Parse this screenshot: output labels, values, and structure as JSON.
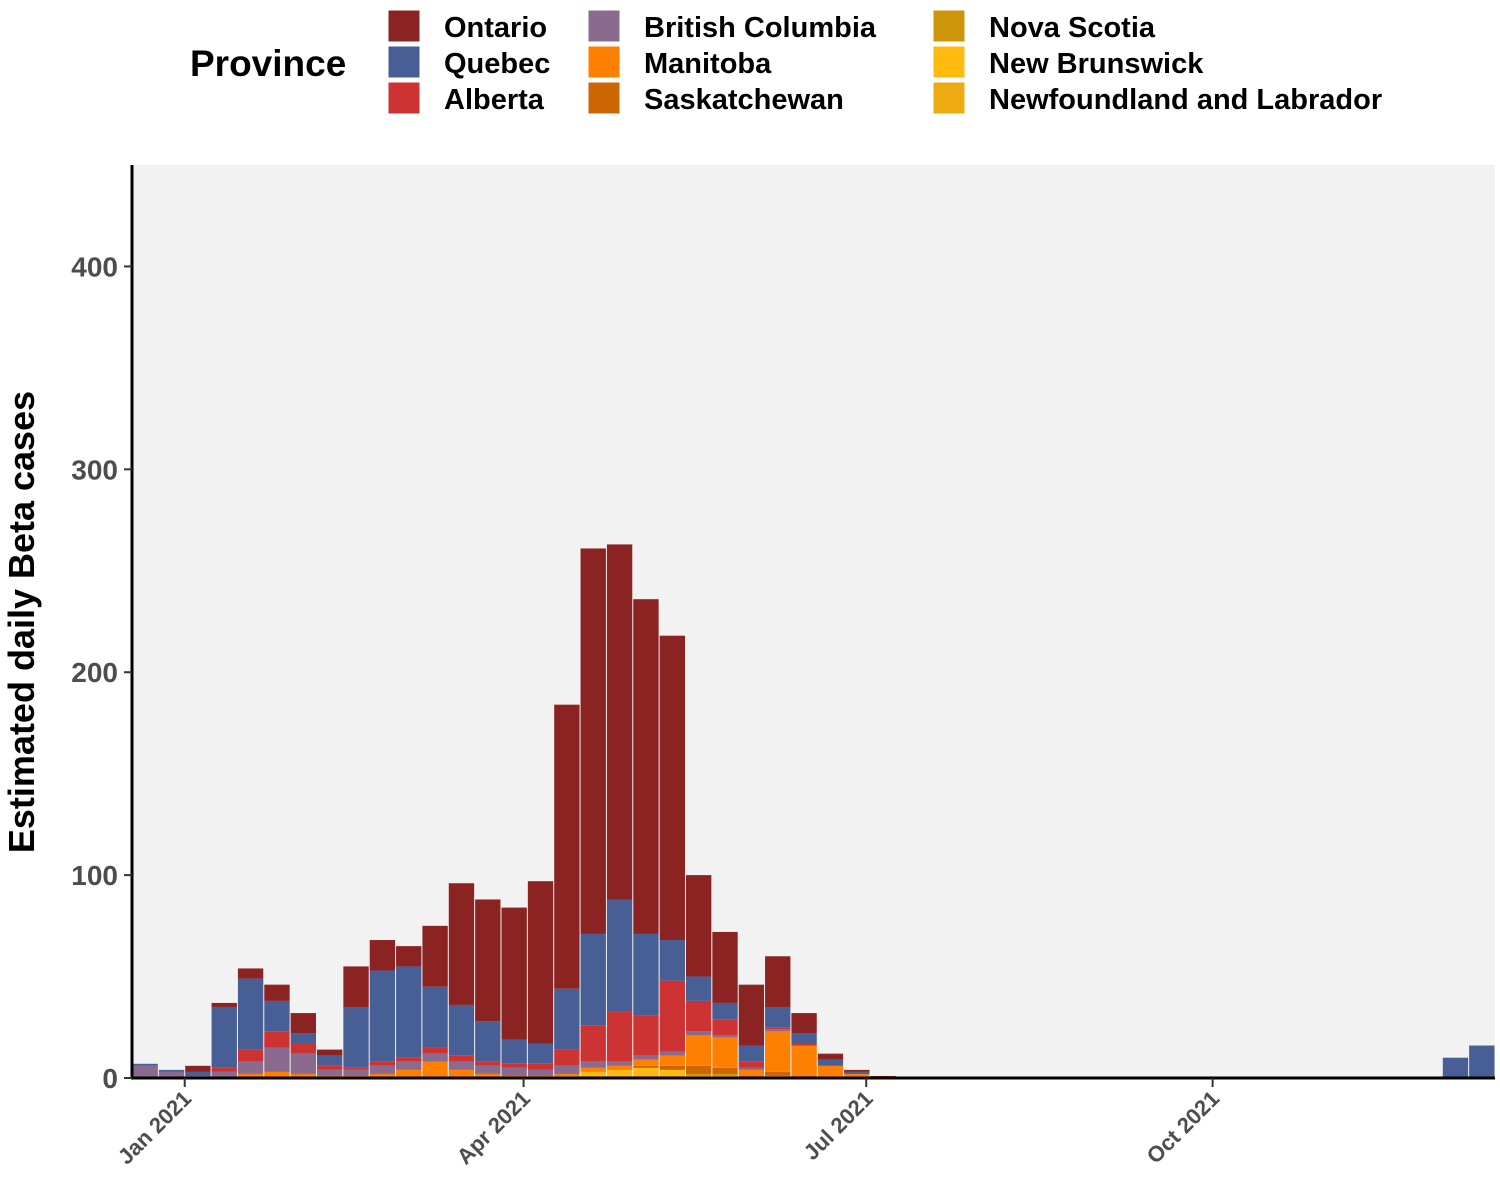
{
  "chart_data": {
    "type": "bar",
    "stacked": true,
    "title": "",
    "xlabel": "",
    "ylabel": "Estimated daily Beta cases",
    "ylim": [
      0,
      450
    ],
    "yticks": [
      "0",
      "100",
      "200",
      "300",
      "400"
    ],
    "xticks": [
      {
        "date": "2021-01-01",
        "label": "Jan 2021"
      },
      {
        "date": "2021-04-01",
        "label": "Apr 2021"
      },
      {
        "date": "2021-07-01",
        "label": "Jul 2021"
      },
      {
        "date": "2021-10-01",
        "label": "Oct 2021"
      }
    ],
    "x_range": [
      "2020-12-18",
      "2021-12-15"
    ],
    "grid": false,
    "legend": {
      "title": "Province",
      "placement": "top",
      "entries": [
        {
          "name": "Ontario",
          "color": "#8b2323"
        },
        {
          "name": "Quebec",
          "color": "#475f94"
        },
        {
          "name": "Alberta",
          "color": "#cd3333"
        },
        {
          "name": "British Columbia",
          "color": "#8b6a8f"
        },
        {
          "name": "Manitoba",
          "color": "#ff7f00"
        },
        {
          "name": "Saskatchewan",
          "color": "#cd6600"
        },
        {
          "name": "Nova Scotia",
          "color": "#cd950c"
        },
        {
          "name": "New Brunswick",
          "color": "#ffb90f"
        },
        {
          "name": "Newfoundland and Labrador",
          "color": "#eeaa11"
        }
      ]
    },
    "series_bins": {
      "bin_days": 7,
      "note_start": "2020-12-18",
      "week_starts": [
        "2020-12-18",
        "2020-12-25",
        "2021-01-01",
        "2021-01-08",
        "2021-01-15",
        "2021-01-22",
        "2021-01-29",
        "2021-02-05",
        "2021-02-12",
        "2021-02-19",
        "2021-02-26",
        "2021-03-05",
        "2021-03-12",
        "2021-03-19",
        "2021-03-26",
        "2021-04-02",
        "2021-04-09",
        "2021-04-16",
        "2021-04-23",
        "2021-04-30",
        "2021-05-07",
        "2021-05-14",
        "2021-05-21",
        "2021-05-28",
        "2021-06-04",
        "2021-06-11",
        "2021-06-18",
        "2021-06-25",
        "2021-07-02",
        "2021-07-09"
      ]
    },
    "series": [
      {
        "name": "Ontario",
        "values": [
          0,
          0,
          3,
          2,
          5,
          8,
          10,
          3,
          20,
          15,
          10,
          30,
          60,
          60,
          65,
          80,
          140,
          190,
          175,
          165,
          150,
          50,
          35,
          30,
          25,
          10,
          3,
          1,
          1,
          0
        ]
      },
      {
        "name": "Quebec",
        "values": [
          1,
          1,
          2,
          30,
          35,
          15,
          5,
          5,
          30,
          45,
          45,
          30,
          25,
          20,
          12,
          10,
          30,
          45,
          55,
          40,
          20,
          12,
          8,
          8,
          10,
          5,
          3,
          1,
          0,
          0
        ]
      },
      {
        "name": "Alberta",
        "values": [
          0,
          0,
          0,
          2,
          6,
          8,
          5,
          2,
          1,
          2,
          2,
          3,
          3,
          2,
          2,
          3,
          8,
          18,
          25,
          20,
          35,
          15,
          8,
          3,
          1,
          1,
          0,
          0,
          0,
          0
        ]
      },
      {
        "name": "British Columbia",
        "values": [
          6,
          3,
          1,
          3,
          6,
          12,
          10,
          3,
          3,
          4,
          4,
          4,
          4,
          4,
          4,
          3,
          4,
          3,
          2,
          2,
          2,
          2,
          1,
          1,
          1,
          0,
          0,
          0,
          0,
          0
        ]
      },
      {
        "name": "Manitoba",
        "values": [
          0,
          0,
          0,
          0,
          2,
          3,
          2,
          1,
          1,
          2,
          4,
          8,
          4,
          2,
          1,
          1,
          1,
          2,
          2,
          3,
          5,
          15,
          15,
          3,
          20,
          15,
          6,
          2,
          0,
          0
        ]
      },
      {
        "name": "Saskatchewan",
        "values": [
          0,
          0,
          0,
          0,
          0,
          0,
          0,
          0,
          0,
          0,
          0,
          0,
          0,
          0,
          0,
          0,
          0,
          0,
          0,
          1,
          2,
          4,
          3,
          1,
          2,
          1,
          0,
          0,
          0,
          0
        ]
      },
      {
        "name": "Nova Scotia",
        "values": [
          0,
          0,
          0,
          0,
          0,
          0,
          0,
          0,
          0,
          0,
          0,
          0,
          0,
          0,
          0,
          0,
          0,
          0,
          0,
          0,
          0,
          1,
          1,
          0,
          1,
          0,
          0,
          0,
          0,
          0
        ]
      },
      {
        "name": "New Brunswick",
        "values": [
          0,
          0,
          0,
          0,
          0,
          0,
          0,
          0,
          0,
          0,
          0,
          0,
          0,
          0,
          0,
          0,
          0,
          2,
          3,
          4,
          3,
          1,
          1,
          0,
          0,
          0,
          0,
          0,
          0,
          0
        ]
      },
      {
        "name": "Newfoundland and Labrador",
        "values": [
          0,
          0,
          0,
          0,
          0,
          0,
          0,
          0,
          0,
          0,
          0,
          0,
          0,
          0,
          0,
          0,
          1,
          1,
          1,
          1,
          1,
          0,
          0,
          0,
          0,
          0,
          0,
          0,
          0,
          0
        ]
      }
    ],
    "late_series": {
      "name": "Quebec",
      "week_starts": [
        "2021-12-01",
        "2021-12-08"
      ],
      "values": [
        10,
        16
      ]
    }
  }
}
